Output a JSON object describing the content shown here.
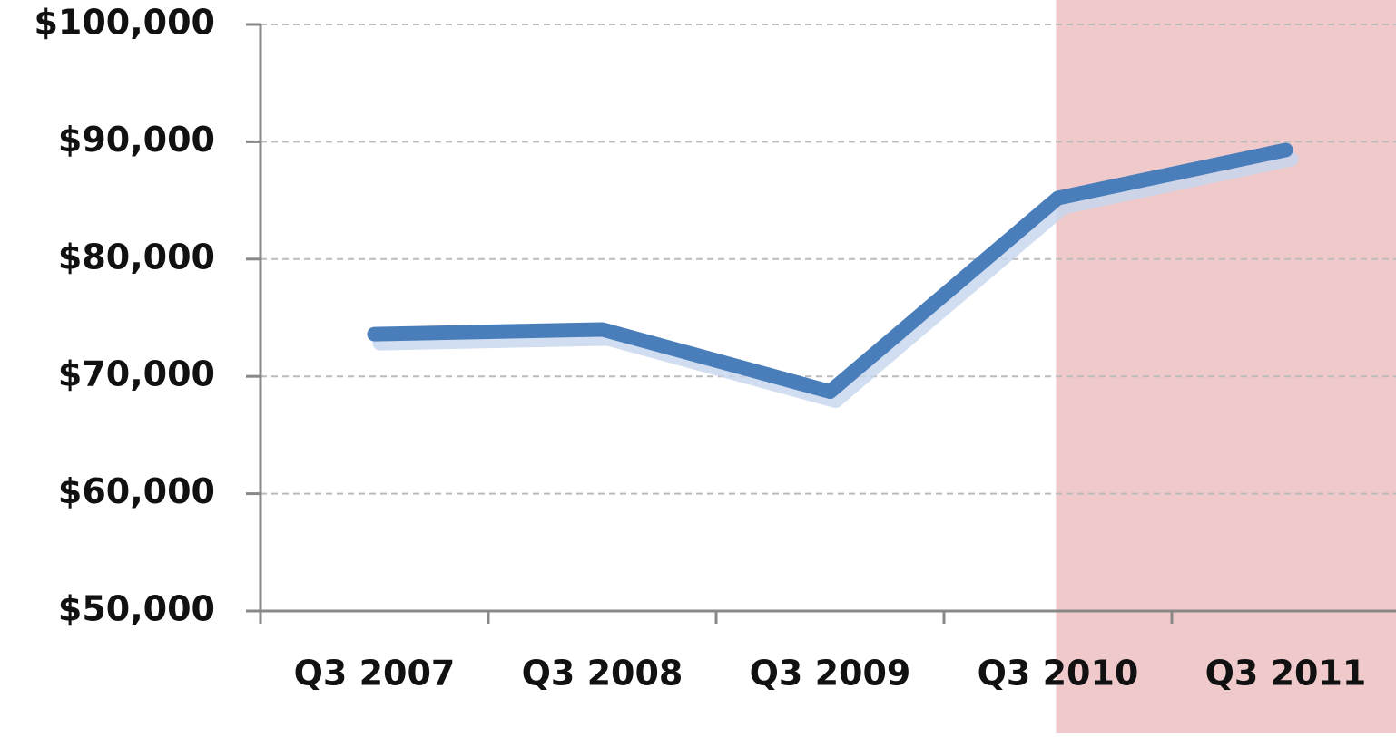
{
  "chart_data": {
    "type": "line",
    "categories": [
      "Q3 2007",
      "Q3 2008",
      "Q3 2009",
      "Q3 2010",
      "Q3 2011"
    ],
    "series": [
      {
        "color": "#4a7ebb",
        "values": [
          73600,
          74000,
          68700,
          85200,
          89300
        ]
      }
    ],
    "ylim": [
      50000,
      100000
    ],
    "yticks": [
      {
        "value": 50000,
        "label": "$50,000"
      },
      {
        "value": 60000,
        "label": "$60,000"
      },
      {
        "value": 70000,
        "label": "$70,000"
      },
      {
        "value": 80000,
        "label": "$80,000"
      },
      {
        "value": 90000,
        "label": "$90,000"
      },
      {
        "value": 100000,
        "label": "$100,000"
      }
    ],
    "grid": true
  }
}
